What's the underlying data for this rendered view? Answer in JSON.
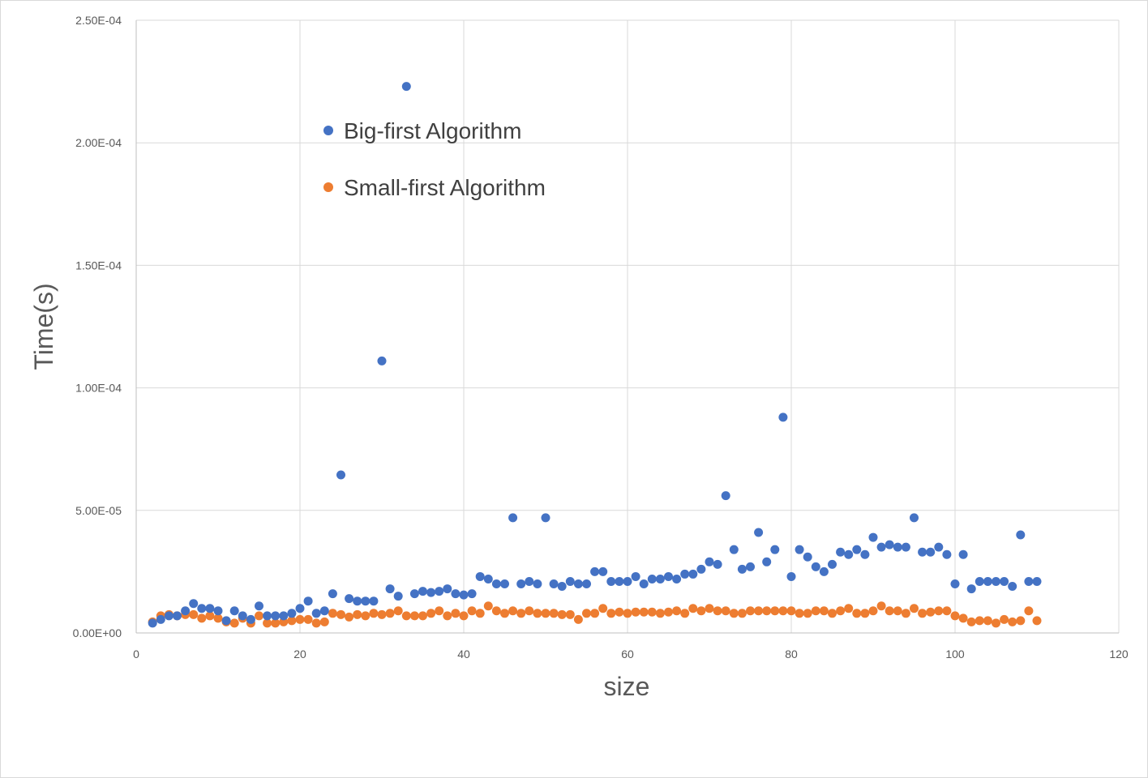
{
  "chart_data": {
    "type": "scatter",
    "title": "",
    "xlabel": "size",
    "ylabel": "Time(s)",
    "xlim": [
      0,
      120
    ],
    "ylim": [
      0,
      0.00025
    ],
    "x_ticks": [
      0,
      20,
      40,
      60,
      80,
      100,
      120
    ],
    "x_tick_labels": [
      "0",
      "20",
      "40",
      "60",
      "80",
      "100",
      "120"
    ],
    "y_ticks": [
      0,
      5e-05,
      0.0001,
      0.00015,
      0.0002,
      0.00025
    ],
    "y_tick_labels": [
      "0.00E+00",
      "5.00E-05",
      "1.00E-04",
      "1.50E-04",
      "2.00E-04",
      "2.50E-04"
    ],
    "grid": true,
    "legend_position": "upper-left-inside",
    "series": [
      {
        "name": "Big-first Algorithm",
        "color": "#4472c4",
        "x": [
          2,
          3,
          4,
          5,
          6,
          7,
          8,
          9,
          10,
          11,
          12,
          13,
          14,
          15,
          16,
          17,
          18,
          19,
          20,
          21,
          22,
          23,
          24,
          25,
          26,
          27,
          28,
          29,
          30,
          31,
          32,
          33,
          34,
          35,
          36,
          37,
          38,
          39,
          40,
          41,
          42,
          43,
          44,
          45,
          46,
          47,
          48,
          49,
          50,
          51,
          52,
          53,
          54,
          55,
          56,
          57,
          58,
          59,
          60,
          61,
          62,
          63,
          64,
          65,
          66,
          67,
          68,
          69,
          70,
          71,
          72,
          73,
          74,
          75,
          76,
          77,
          78,
          79,
          80,
          81,
          82,
          83,
          84,
          85,
          86,
          87,
          88,
          89,
          90,
          91,
          92,
          93,
          94,
          95,
          96,
          97,
          98,
          99,
          100,
          101,
          102,
          103,
          104,
          105,
          106,
          107,
          108,
          109,
          110
        ],
        "y": [
          4e-06,
          5.5e-06,
          7e-06,
          7e-06,
          9e-06,
          1.2e-05,
          1e-05,
          1e-05,
          9e-06,
          5e-06,
          9e-06,
          7e-06,
          5.5e-06,
          1.1e-05,
          7e-06,
          7e-06,
          7e-06,
          8e-06,
          1e-05,
          1.3e-05,
          8e-06,
          9e-06,
          1.6e-05,
          6.45e-05,
          1.4e-05,
          1.3e-05,
          1.3e-05,
          1.3e-05,
          0.000111,
          1.8e-05,
          1.5e-05,
          0.000223,
          1.6e-05,
          1.7e-05,
          1.65e-05,
          1.7e-05,
          1.8e-05,
          1.6e-05,
          1.55e-05,
          1.6e-05,
          2.3e-05,
          2.2e-05,
          2e-05,
          2e-05,
          4.7e-05,
          2e-05,
          2.1e-05,
          2e-05,
          4.7e-05,
          2e-05,
          1.9e-05,
          2.1e-05,
          2e-05,
          2e-05,
          2.5e-05,
          2.5e-05,
          2.1e-05,
          2.1e-05,
          2.1e-05,
          2.3e-05,
          2e-05,
          2.2e-05,
          2.2e-05,
          2.3e-05,
          2.2e-05,
          2.4e-05,
          2.4e-05,
          2.6e-05,
          2.9e-05,
          2.8e-05,
          5.6e-05,
          3.4e-05,
          2.6e-05,
          2.7e-05,
          4.1e-05,
          2.9e-05,
          3.4e-05,
          8.8e-05,
          2.3e-05,
          3.4e-05,
          3.1e-05,
          2.7e-05,
          2.5e-05,
          2.8e-05,
          3.3e-05,
          3.2e-05,
          3.4e-05,
          3.2e-05,
          3.9e-05,
          3.5e-05,
          3.6e-05,
          3.5e-05,
          3.5e-05,
          4.7e-05,
          3.3e-05,
          3.3e-05,
          3.5e-05,
          3.2e-05,
          2e-05,
          3.2e-05,
          1.8e-05,
          2.1e-05,
          2.1e-05,
          2.1e-05,
          2.1e-05,
          1.9e-05,
          4e-05,
          2.1e-05,
          2.1e-05
        ]
      },
      {
        "name": "Small-first Algorithm",
        "color": "#ed7d31",
        "x": [
          2,
          3,
          4,
          5,
          6,
          7,
          8,
          9,
          10,
          11,
          12,
          13,
          14,
          15,
          16,
          17,
          18,
          19,
          20,
          21,
          22,
          23,
          24,
          25,
          26,
          27,
          28,
          29,
          30,
          31,
          32,
          33,
          34,
          35,
          36,
          37,
          38,
          39,
          40,
          41,
          42,
          43,
          44,
          45,
          46,
          47,
          48,
          49,
          50,
          51,
          52,
          53,
          54,
          55,
          56,
          57,
          58,
          59,
          60,
          61,
          62,
          63,
          64,
          65,
          66,
          67,
          68,
          69,
          70,
          71,
          72,
          73,
          74,
          75,
          76,
          77,
          78,
          79,
          80,
          81,
          82,
          83,
          84,
          85,
          86,
          87,
          88,
          89,
          90,
          91,
          92,
          93,
          94,
          95,
          96,
          97,
          98,
          99,
          100,
          101,
          102,
          103,
          104,
          105,
          106,
          107,
          108,
          109,
          110
        ],
        "y": [
          4.5e-06,
          7e-06,
          7.5e-06,
          7e-06,
          7.5e-06,
          7.5e-06,
          6e-06,
          7e-06,
          6e-06,
          4.5e-06,
          4e-06,
          6e-06,
          4e-06,
          7e-06,
          4e-06,
          4e-06,
          4.5e-06,
          5e-06,
          5.5e-06,
          5.5e-06,
          4e-06,
          4.5e-06,
          8e-06,
          7.5e-06,
          6.5e-06,
          7.5e-06,
          7e-06,
          8e-06,
          7.5e-06,
          8e-06,
          9e-06,
          7e-06,
          7e-06,
          7e-06,
          8e-06,
          9e-06,
          7e-06,
          8e-06,
          7e-06,
          9e-06,
          8e-06,
          1.1e-05,
          9e-06,
          8e-06,
          9e-06,
          8e-06,
          9e-06,
          8e-06,
          8e-06,
          8e-06,
          7.5e-06,
          7.5e-06,
          5.5e-06,
          8e-06,
          8e-06,
          1e-05,
          8e-06,
          8.5e-06,
          8e-06,
          8.5e-06,
          8.5e-06,
          8.5e-06,
          8e-06,
          8.5e-06,
          9e-06,
          8e-06,
          1e-05,
          9e-06,
          1e-05,
          9e-06,
          9e-06,
          8e-06,
          8e-06,
          9e-06,
          9e-06,
          9e-06,
          9e-06,
          9e-06,
          9e-06,
          8e-06,
          8e-06,
          9e-06,
          9e-06,
          8e-06,
          9e-06,
          1e-05,
          8e-06,
          8e-06,
          9e-06,
          1.1e-05,
          9e-06,
          9e-06,
          8e-06,
          1e-05,
          8e-06,
          8.5e-06,
          9e-06,
          9e-06,
          7e-06,
          6e-06,
          4.5e-06,
          5e-06,
          5e-06,
          4e-06,
          5.5e-06,
          4.5e-06,
          5e-06,
          9e-06,
          5e-06
        ]
      }
    ]
  }
}
